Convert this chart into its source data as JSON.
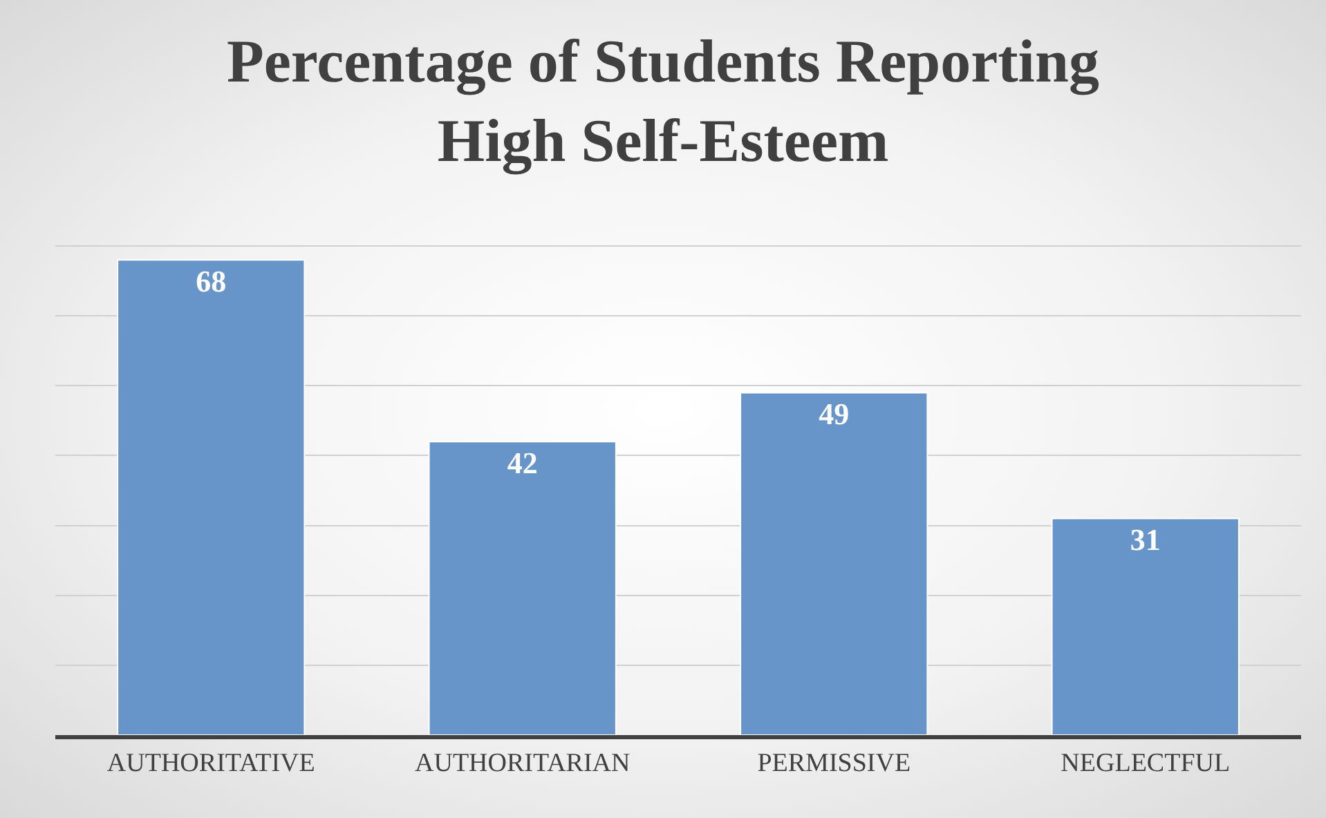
{
  "chart_data": {
    "type": "bar",
    "title": "Percentage of Students Reporting High Self-Esteem",
    "categories": [
      "AUTHORITATIVE",
      "AUTHORITARIAN",
      "PERMISSIVE",
      "NEGLECTFUL"
    ],
    "values": [
      68,
      42,
      49,
      31
    ],
    "color": "#6895c9",
    "data_labels": true,
    "grid": "y",
    "tick_labels": "x",
    "legend": false
  }
}
